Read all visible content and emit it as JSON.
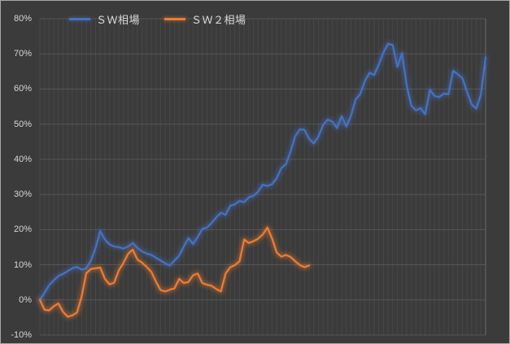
{
  "chart_data": {
    "type": "line",
    "title": "",
    "legend_position": "top",
    "background_color": "#3B3B3B",
    "frame_border_color": "#A8A8A8",
    "gridline_color_vertical": "#474747",
    "gridline_color_vertical_edge": "#6E6E6E",
    "gridline_color_horizontal": "#565656",
    "axis_label_color": "#D6D6D6",
    "legend_text_color": "#D9D9D9",
    "y_axis": {
      "min": -10,
      "max": 80,
      "step": 10,
      "tick_labels": [
        "80%",
        "70%",
        "60%",
        "50%",
        "40%",
        "30%",
        "20%",
        "10%",
        "0%",
        "-10%"
      ]
    },
    "x_axis": {
      "tick_labels_visible": false,
      "category_count": 97
    },
    "series": [
      {
        "name": "ＳＷ相場",
        "color": "#4472C4",
        "values": [
          0.0,
          2.0,
          4.2,
          5.6,
          6.8,
          7.4,
          8.2,
          9.0,
          9.4,
          8.6,
          9.0,
          11.2,
          14.8,
          19.6,
          17.2,
          15.8,
          15.2,
          15.0,
          14.6,
          15.2,
          16.2,
          14.8,
          13.8,
          13.2,
          12.8,
          12.0,
          11.2,
          10.4,
          9.8,
          11.2,
          12.6,
          15.2,
          17.6,
          15.9,
          17.9,
          20.2,
          20.6,
          21.9,
          23.5,
          24.8,
          24.2,
          26.8,
          27.2,
          28.2,
          27.8,
          29.2,
          29.6,
          30.8,
          32.8,
          32.4,
          32.9,
          34.6,
          37.5,
          38.6,
          42.3,
          46.6,
          48.5,
          48.4,
          45.8,
          44.5,
          46.5,
          49.8,
          51.3,
          50.7,
          48.9,
          52.3,
          49.3,
          52.4,
          57.0,
          58.6,
          62.3,
          64.6,
          64.0,
          67.0,
          70.4,
          72.9,
          72.5,
          66.3,
          70.2,
          61.0,
          55.3,
          53.9,
          54.6,
          52.8,
          59.8,
          58.0,
          57.7,
          58.7,
          58.5,
          65.2,
          64.2,
          63.1,
          59.2,
          55.6,
          54.4,
          58.5,
          69.0
        ]
      },
      {
        "name": "ＳＷ２相場",
        "color": "#ED7D31",
        "values": [
          0.0,
          -2.8,
          -3.0,
          -1.8,
          -1.0,
          -3.4,
          -4.8,
          -4.4,
          -3.6,
          1.0,
          7.6,
          8.8,
          9.0,
          9.2,
          6.0,
          4.4,
          4.9,
          8.4,
          10.5,
          13.1,
          14.3,
          11.5,
          10.6,
          9.4,
          8.0,
          5.2,
          2.8,
          2.4,
          2.9,
          3.3,
          6.0,
          4.8,
          5.1,
          7.0,
          7.5,
          4.8,
          4.3,
          4.0,
          3.1,
          2.4,
          7.5,
          9.3,
          9.9,
          11.0,
          17.2,
          16.2,
          16.7,
          17.4,
          18.6,
          20.6,
          17.5,
          13.5,
          12.3,
          12.8,
          12.2,
          11.0,
          9.9,
          9.3,
          9.8
        ]
      }
    ]
  }
}
